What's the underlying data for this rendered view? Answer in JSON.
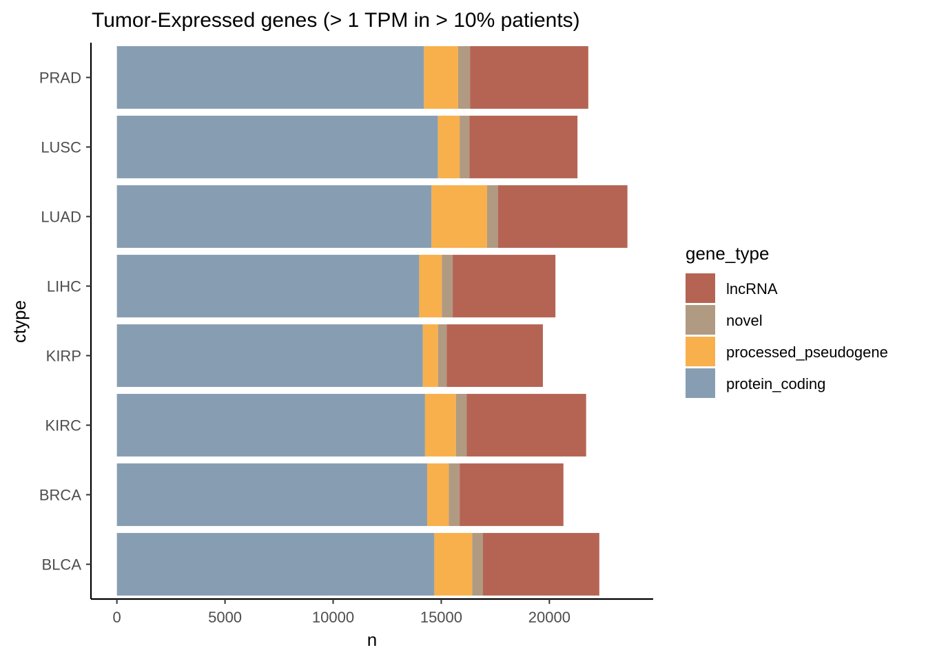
{
  "chart_data": {
    "type": "bar",
    "orientation": "horizontal",
    "stacked": true,
    "title": "Tumor-Expressed genes (> 1 TPM in > 10% patients)",
    "xlabel": "n",
    "ylabel": "ctype",
    "xlim": [
      -1200,
      24800
    ],
    "xticks": [
      0,
      5000,
      10000,
      15000,
      20000
    ],
    "xtick_labels": [
      "0",
      "5000",
      "10000",
      "15000",
      "20000"
    ],
    "categories": [
      "PRAD",
      "LUSC",
      "LUAD",
      "LIHC",
      "KIRP",
      "KIRC",
      "BRCA",
      "BLCA"
    ],
    "series": [
      {
        "name": "protein_coding",
        "color": "#879eb2",
        "values": [
          14200,
          14850,
          14550,
          13980,
          14150,
          14250,
          14350,
          14680
        ]
      },
      {
        "name": "processed_pseudogene",
        "color": "#f8b04c",
        "values": [
          1580,
          1000,
          2570,
          1050,
          700,
          1430,
          1000,
          1750
        ]
      },
      {
        "name": "novel",
        "color": "#b09a82",
        "values": [
          550,
          450,
          500,
          500,
          400,
          500,
          500,
          500
        ]
      },
      {
        "name": "lncRNA",
        "color": "#b56454",
        "values": [
          5470,
          5000,
          5990,
          4750,
          4450,
          5520,
          4800,
          5380
        ]
      }
    ],
    "legend": {
      "title": "gene_type",
      "placement": "right",
      "entries": [
        "lncRNA",
        "novel",
        "processed_pseudogene",
        "protein_coding"
      ]
    },
    "grid": false
  }
}
